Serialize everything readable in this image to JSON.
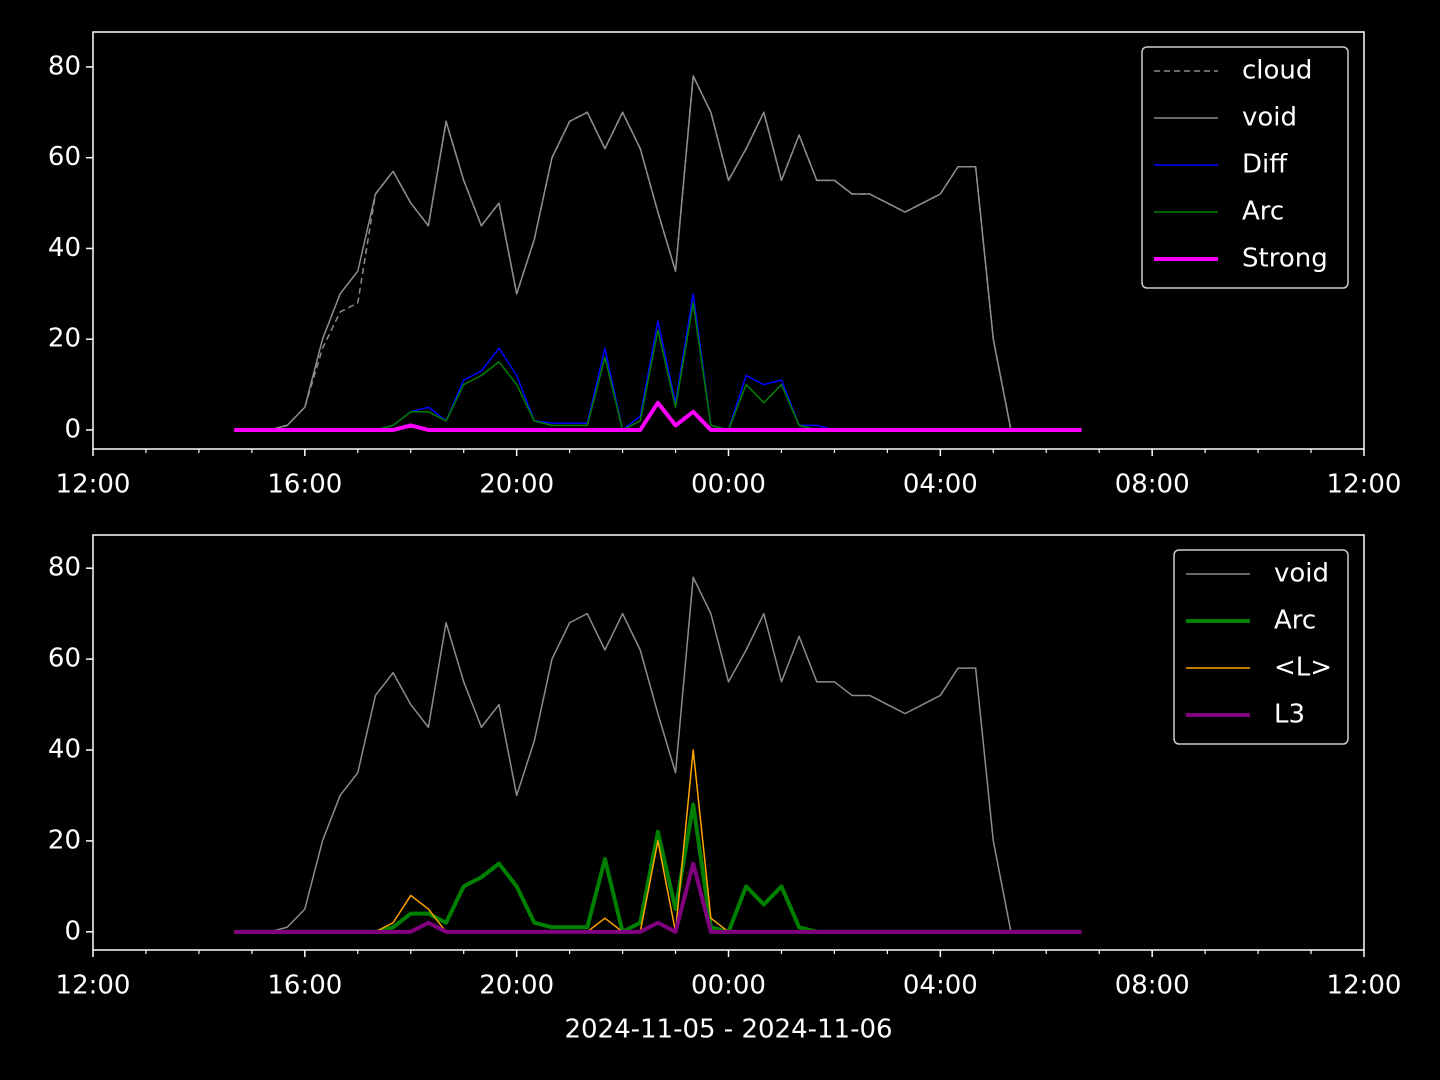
{
  "chart_data": [
    {
      "type": "line",
      "legend": "upper right",
      "x": [
        "2024-11-05T14:40",
        "2024-11-05T15:00",
        "2024-11-05T15:20",
        "2024-11-05T15:40",
        "2024-11-05T16:00",
        "2024-11-05T16:20",
        "2024-11-05T16:40",
        "2024-11-05T17:00",
        "2024-11-05T17:20",
        "2024-11-05T17:40",
        "2024-11-05T18:00",
        "2024-11-05T18:20",
        "2024-11-05T18:40",
        "2024-11-05T19:00",
        "2024-11-05T19:20",
        "2024-11-05T19:40",
        "2024-11-05T20:00",
        "2024-11-05T20:20",
        "2024-11-05T20:40",
        "2024-11-05T21:00",
        "2024-11-05T21:20",
        "2024-11-05T21:40",
        "2024-11-05T22:00",
        "2024-11-05T22:20",
        "2024-11-05T22:40",
        "2024-11-05T23:00",
        "2024-11-05T23:20",
        "2024-11-05T23:40",
        "2024-11-06T00:00",
        "2024-11-06T00:20",
        "2024-11-06T00:40",
        "2024-11-06T01:00",
        "2024-11-06T01:20",
        "2024-11-06T01:40",
        "2024-11-06T02:00",
        "2024-11-06T02:20",
        "2024-11-06T02:40",
        "2024-11-06T03:00",
        "2024-11-06T03:20",
        "2024-11-06T03:40",
        "2024-11-06T04:00",
        "2024-11-06T04:20",
        "2024-11-06T04:40",
        "2024-11-06T05:00",
        "2024-11-06T05:20",
        "2024-11-06T05:40",
        "2024-11-06T06:00",
        "2024-11-06T06:20",
        "2024-11-06T06:40"
      ],
      "xlim": [
        "2024-11-05T12:00",
        "2024-11-06T12:00"
      ],
      "xticks": [
        {
          "value": "2024-11-05T12:00",
          "label": "12:00"
        },
        {
          "value": "2024-11-05T16:00",
          "label": "16:00"
        },
        {
          "value": "2024-11-05T20:00",
          "label": "20:00"
        },
        {
          "value": "2024-11-06T00:00",
          "label": "00:00"
        },
        {
          "value": "2024-11-06T04:00",
          "label": "04:00"
        },
        {
          "value": "2024-11-06T08:00",
          "label": "08:00"
        },
        {
          "value": "2024-11-06T12:00",
          "label": "12:00"
        }
      ],
      "xminorticks": [
        "2024-11-05T13:00",
        "2024-11-05T14:00",
        "2024-11-05T15:00",
        "2024-11-05T17:00",
        "2024-11-05T18:00",
        "2024-11-05T19:00",
        "2024-11-05T21:00",
        "2024-11-05T22:00",
        "2024-11-05T23:00",
        "2024-11-06T01:00",
        "2024-11-06T02:00",
        "2024-11-06T03:00",
        "2024-11-06T05:00",
        "2024-11-06T06:00",
        "2024-11-06T07:00",
        "2024-11-06T09:00",
        "2024-11-06T10:00",
        "2024-11-06T11:00"
      ],
      "ylim": [
        -4.2,
        87.7
      ],
      "yticks": [
        0,
        20,
        40,
        60,
        80
      ],
      "series": [
        {
          "name": "cloud",
          "color": "#8c8c8c",
          "linestyle": "dashed",
          "linewidth": 1.5,
          "values": [
            0,
            0,
            0,
            1,
            5,
            18,
            26,
            28,
            52,
            57,
            50,
            45,
            68,
            55,
            45,
            50,
            30,
            42,
            60,
            68,
            70,
            62,
            70,
            62,
            48,
            35,
            78,
            70,
            55,
            62,
            70,
            55,
            65,
            55,
            55,
            52,
            52,
            50,
            48,
            50,
            52,
            58,
            58,
            20,
            0,
            null,
            null,
            null,
            null
          ]
        },
        {
          "name": "void",
          "color": "#8c8c8c",
          "linestyle": "solid",
          "linewidth": 1.5,
          "values": [
            0,
            0,
            0,
            1,
            5,
            20,
            30,
            35,
            52,
            57,
            50,
            45,
            68,
            55,
            45,
            50,
            30,
            42,
            60,
            68,
            70,
            62,
            70,
            62,
            48,
            35,
            78,
            70,
            55,
            62,
            70,
            55,
            65,
            55,
            55,
            52,
            52,
            50,
            48,
            50,
            52,
            58,
            58,
            20,
            0,
            null,
            null,
            null,
            null
          ]
        },
        {
          "name": "Diff",
          "color": "#0000ff",
          "linestyle": "solid",
          "linewidth": 1.5,
          "values": [
            0,
            0,
            0,
            0,
            0,
            0,
            0,
            0,
            0,
            1,
            4,
            5,
            2,
            11,
            13,
            18,
            12,
            2,
            1.5,
            1.5,
            1.5,
            18,
            0,
            3,
            24,
            6,
            30,
            1,
            0,
            12,
            10,
            11,
            1,
            1,
            0,
            0,
            0,
            0,
            0,
            0,
            0,
            0,
            0,
            0,
            0,
            0,
            0,
            0,
            0
          ]
        },
        {
          "name": "Arc",
          "color": "#008000",
          "linestyle": "solid",
          "linewidth": 1.5,
          "values": [
            0,
            0,
            0,
            0,
            0,
            0,
            0,
            0,
            0,
            1,
            4,
            4,
            2,
            10,
            12,
            15,
            10,
            2,
            1,
            1,
            1,
            16,
            0,
            2,
            22,
            5,
            28,
            1,
            0,
            10,
            6,
            10,
            1,
            0,
            0,
            0,
            0,
            0,
            0,
            0,
            0,
            0,
            0,
            0,
            0,
            0,
            0,
            0,
            0
          ]
        },
        {
          "name": "Strong",
          "color": "#ff00ff",
          "linestyle": "solid",
          "linewidth": 4,
          "values": [
            0,
            0,
            0,
            0,
            0,
            0,
            0,
            0,
            0,
            0,
            1,
            0,
            0,
            0,
            0,
            0,
            0,
            0,
            0,
            0,
            0,
            0,
            0,
            0,
            6,
            1,
            4,
            0,
            0,
            0,
            0,
            0,
            0,
            0,
            0,
            0,
            0,
            0,
            0,
            0,
            0,
            0,
            0,
            0,
            0,
            0,
            0,
            0,
            0
          ]
        }
      ]
    },
    {
      "type": "line",
      "legend": "upper right",
      "xlabel": "2024-11-05 - 2024-11-06",
      "x": [
        "2024-11-05T14:40",
        "2024-11-05T15:00",
        "2024-11-05T15:20",
        "2024-11-05T15:40",
        "2024-11-05T16:00",
        "2024-11-05T16:20",
        "2024-11-05T16:40",
        "2024-11-05T17:00",
        "2024-11-05T17:20",
        "2024-11-05T17:40",
        "2024-11-05T18:00",
        "2024-11-05T18:20",
        "2024-11-05T18:40",
        "2024-11-05T19:00",
        "2024-11-05T19:20",
        "2024-11-05T19:40",
        "2024-11-05T20:00",
        "2024-11-05T20:20",
        "2024-11-05T20:40",
        "2024-11-05T21:00",
        "2024-11-05T21:20",
        "2024-11-05T21:40",
        "2024-11-05T22:00",
        "2024-11-05T22:20",
        "2024-11-05T22:40",
        "2024-11-05T23:00",
        "2024-11-05T23:20",
        "2024-11-05T23:40",
        "2024-11-06T00:00",
        "2024-11-06T00:20",
        "2024-11-06T00:40",
        "2024-11-06T01:00",
        "2024-11-06T01:20",
        "2024-11-06T01:40",
        "2024-11-06T02:00",
        "2024-11-06T02:20",
        "2024-11-06T02:40",
        "2024-11-06T03:00",
        "2024-11-06T03:20",
        "2024-11-06T03:40",
        "2024-11-06T04:00",
        "2024-11-06T04:20",
        "2024-11-06T04:40",
        "2024-11-06T05:00",
        "2024-11-06T05:20",
        "2024-11-06T05:40",
        "2024-11-06T06:00",
        "2024-11-06T06:20",
        "2024-11-06T06:40"
      ],
      "xlim": [
        "2024-11-05T12:00",
        "2024-11-06T12:00"
      ],
      "xticks": [
        {
          "value": "2024-11-05T12:00",
          "label": "12:00"
        },
        {
          "value": "2024-11-05T16:00",
          "label": "16:00"
        },
        {
          "value": "2024-11-05T20:00",
          "label": "20:00"
        },
        {
          "value": "2024-11-06T00:00",
          "label": "00:00"
        },
        {
          "value": "2024-11-06T04:00",
          "label": "04:00"
        },
        {
          "value": "2024-11-06T08:00",
          "label": "08:00"
        },
        {
          "value": "2024-11-06T12:00",
          "label": "12:00"
        }
      ],
      "xminorticks": [
        "2024-11-05T13:00",
        "2024-11-05T14:00",
        "2024-11-05T15:00",
        "2024-11-05T17:00",
        "2024-11-05T18:00",
        "2024-11-05T19:00",
        "2024-11-05T21:00",
        "2024-11-05T22:00",
        "2024-11-05T23:00",
        "2024-11-06T01:00",
        "2024-11-06T02:00",
        "2024-11-06T03:00",
        "2024-11-06T05:00",
        "2024-11-06T06:00",
        "2024-11-06T07:00",
        "2024-11-06T09:00",
        "2024-11-06T10:00",
        "2024-11-06T11:00"
      ],
      "ylim": [
        -4,
        87.3
      ],
      "yticks": [
        0,
        20,
        40,
        60,
        80
      ],
      "series": [
        {
          "name": "void",
          "color": "#8c8c8c",
          "linestyle": "solid",
          "linewidth": 1.5,
          "values": [
            0,
            0,
            0,
            1,
            5,
            20,
            30,
            35,
            52,
            57,
            50,
            45,
            68,
            55,
            45,
            50,
            30,
            42,
            60,
            68,
            70,
            62,
            70,
            62,
            48,
            35,
            78,
            70,
            55,
            62,
            70,
            55,
            65,
            55,
            55,
            52,
            52,
            50,
            48,
            50,
            52,
            58,
            58,
            20,
            0,
            null,
            null,
            null,
            null
          ]
        },
        {
          "name": "Arc",
          "color": "#008000",
          "linestyle": "solid",
          "linewidth": 4,
          "values": [
            0,
            0,
            0,
            0,
            0,
            0,
            0,
            0,
            0,
            1,
            4,
            4,
            2,
            10,
            12,
            15,
            10,
            2,
            1,
            1,
            1,
            16,
            0,
            2,
            22,
            5,
            28,
            1,
            0,
            10,
            6,
            10,
            1,
            0,
            0,
            0,
            0,
            0,
            0,
            0,
            0,
            0,
            0,
            0,
            0,
            0,
            0,
            0,
            0
          ]
        },
        {
          "name": "<L>",
          "color": "#ffa500",
          "linestyle": "solid",
          "linewidth": 1.5,
          "values": [
            0,
            0,
            0,
            0,
            0,
            0,
            0,
            0,
            0,
            2,
            8,
            5,
            0,
            0,
            0,
            0,
            0,
            0,
            0,
            0,
            0,
            3,
            0,
            0,
            20,
            0,
            40,
            3,
            0,
            0,
            0,
            0,
            0,
            0,
            0,
            0,
            0,
            0,
            0,
            0,
            0,
            0,
            0,
            0,
            0,
            0,
            0,
            0,
            0
          ]
        },
        {
          "name": "L3",
          "color": "#800080",
          "linestyle": "solid",
          "linewidth": 4,
          "values": [
            0,
            0,
            0,
            0,
            0,
            0,
            0,
            0,
            0,
            0,
            0,
            2,
            0,
            0,
            0,
            0,
            0,
            0,
            0,
            0,
            0,
            0,
            0,
            0,
            2,
            0,
            15,
            0,
            0,
            0,
            0,
            0,
            0,
            0,
            0,
            0,
            0,
            0,
            0,
            0,
            0,
            0,
            0,
            0,
            0,
            0,
            0,
            0,
            0
          ]
        }
      ]
    }
  ]
}
